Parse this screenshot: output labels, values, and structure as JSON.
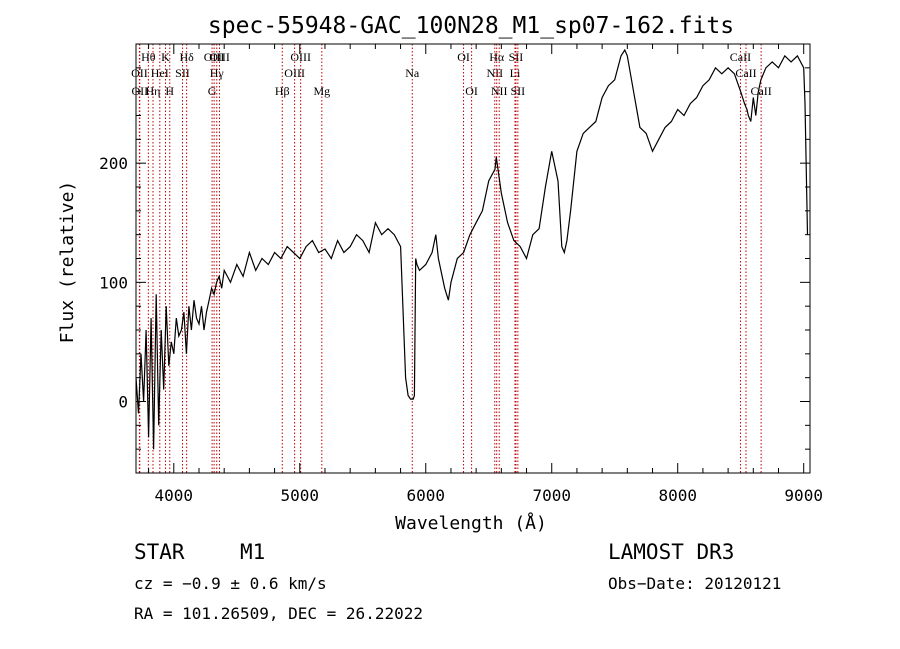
{
  "chart_data": {
    "type": "line",
    "title": "spec-55948-GAC_100N28_M1_sp07-162.fits",
    "xlabel": "Wavelength (Å)",
    "ylabel": "Flux (relative)",
    "xlim": [
      3700,
      9050
    ],
    "ylim": [
      -60,
      300
    ],
    "x_ticks": [
      4000,
      5000,
      6000,
      7000,
      8000,
      9000
    ],
    "y_ticks": [
      0,
      100,
      200
    ],
    "grid": false,
    "series": [
      {
        "name": "flux",
        "x": [
          3700,
          3720,
          3740,
          3760,
          3780,
          3800,
          3820,
          3840,
          3860,
          3880,
          3900,
          3920,
          3940,
          3960,
          3980,
          4000,
          4020,
          4040,
          4060,
          4080,
          4100,
          4120,
          4140,
          4160,
          4180,
          4200,
          4220,
          4240,
          4260,
          4280,
          4300,
          4320,
          4340,
          4360,
          4380,
          4400,
          4450,
          4500,
          4550,
          4600,
          4650,
          4700,
          4750,
          4800,
          4850,
          4900,
          4950,
          5000,
          5050,
          5100,
          5150,
          5200,
          5250,
          5300,
          5350,
          5400,
          5450,
          5500,
          5550,
          5600,
          5650,
          5700,
          5750,
          5800,
          5840,
          5860,
          5880,
          5890,
          5900,
          5910,
          5920,
          5930,
          5950,
          6000,
          6050,
          6080,
          6100,
          6150,
          6180,
          6200,
          6250,
          6300,
          6350,
          6400,
          6450,
          6500,
          6550,
          6560,
          6600,
          6650,
          6700,
          6750,
          6800,
          6850,
          6900,
          6950,
          7000,
          7050,
          7080,
          7100,
          7120,
          7150,
          7200,
          7250,
          7300,
          7350,
          7400,
          7450,
          7500,
          7550,
          7580,
          7600,
          7650,
          7700,
          7750,
          7800,
          7850,
          7900,
          7950,
          8000,
          8050,
          8100,
          8150,
          8200,
          8250,
          8300,
          8350,
          8400,
          8450,
          8500,
          8530,
          8550,
          8560,
          8580,
          8600,
          8620,
          8640,
          8660,
          8700,
          8750,
          8800,
          8850,
          8900,
          8950,
          9000,
          9010,
          9030
        ],
        "values": [
          20,
          -10,
          40,
          0,
          60,
          -30,
          70,
          -40,
          90,
          -20,
          60,
          10,
          80,
          30,
          50,
          40,
          70,
          55,
          60,
          75,
          40,
          80,
          60,
          85,
          70,
          65,
          80,
          60,
          75,
          85,
          95,
          90,
          100,
          105,
          95,
          110,
          100,
          115,
          105,
          125,
          110,
          120,
          115,
          125,
          120,
          130,
          125,
          120,
          130,
          135,
          125,
          128,
          120,
          135,
          125,
          130,
          140,
          135,
          125,
          150,
          140,
          145,
          140,
          130,
          20,
          5,
          2,
          2,
          2,
          5,
          120,
          115,
          110,
          115,
          125,
          140,
          120,
          95,
          85,
          100,
          120,
          125,
          140,
          150,
          160,
          185,
          195,
          205,
          175,
          150,
          135,
          130,
          120,
          140,
          145,
          180,
          210,
          185,
          130,
          125,
          135,
          160,
          210,
          225,
          230,
          235,
          255,
          265,
          270,
          290,
          295,
          290,
          260,
          230,
          225,
          210,
          220,
          230,
          235,
          245,
          240,
          250,
          255,
          265,
          270,
          280,
          275,
          280,
          275,
          260,
          250,
          245,
          240,
          235,
          255,
          240,
          260,
          270,
          280,
          285,
          280,
          290,
          285,
          290,
          280,
          250,
          140
        ]
      }
    ],
    "line_markers": [
      {
        "name": "OII",
        "x": 3727,
        "row": 2
      },
      {
        "name": "OII",
        "x": 3730,
        "row": 3
      },
      {
        "name": "Hθ",
        "x": 3798,
        "row": 1
      },
      {
        "name": "Hη",
        "x": 3835,
        "row": 3
      },
      {
        "name": "HeI",
        "x": 3889,
        "row": 2
      },
      {
        "name": "K",
        "x": 3934,
        "row": 1
      },
      {
        "name": "H",
        "x": 3968,
        "row": 3
      },
      {
        "name": "SII",
        "x": 4069,
        "row": 2
      },
      {
        "name": "Hδ",
        "x": 4102,
        "row": 1
      },
      {
        "name": "G",
        "x": 4304,
        "row": 3
      },
      {
        "name": "OIII",
        "x": 4320,
        "row": 1
      },
      {
        "name": "Hγ",
        "x": 4341,
        "row": 2
      },
      {
        "name": "OIII",
        "x": 4363,
        "row": 1
      },
      {
        "name": "Hβ",
        "x": 4861,
        "row": 3
      },
      {
        "name": "OIII",
        "x": 4959,
        "row": 2
      },
      {
        "name": "OIII",
        "x": 5007,
        "row": 1
      },
      {
        "name": "Mg",
        "x": 5175,
        "row": 3
      },
      {
        "name": "Na",
        "x": 5893,
        "row": 2
      },
      {
        "name": "OI",
        "x": 6300,
        "row": 1
      },
      {
        "name": "OI",
        "x": 6364,
        "row": 3
      },
      {
        "name": "NII",
        "x": 6548,
        "row": 2
      },
      {
        "name": "Hα",
        "x": 6563,
        "row": 1
      },
      {
        "name": "NII",
        "x": 6583,
        "row": 3
      },
      {
        "name": "Li",
        "x": 6708,
        "row": 2
      },
      {
        "name": "SII",
        "x": 6716,
        "row": 1
      },
      {
        "name": "SII",
        "x": 6731,
        "row": 3
      },
      {
        "name": "CaII",
        "x": 8498,
        "row": 1
      },
      {
        "name": "CaII",
        "x": 8542,
        "row": 2
      },
      {
        "name": "CaII",
        "x": 8662,
        "row": 3
      }
    ]
  },
  "info": {
    "object_class": "STAR",
    "subclass": "M1",
    "redshift": "cz = −0.9 ± 0.6 km/s",
    "coords": "RA = 101.26509, DEC =  26.22022",
    "survey": "LAMOST DR3",
    "obs_date": "Obs−Date: 20120121"
  },
  "colors": {
    "axis": "#000000",
    "spectrum": "#000000",
    "marker_line": "#c00000"
  }
}
